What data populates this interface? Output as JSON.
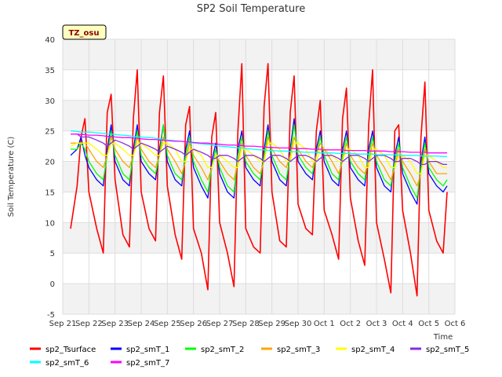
{
  "chart_data": {
    "type": "line",
    "title": "SP2 Soil Temperature",
    "ylabel": "Soil Temperature (C)",
    "xlabel": "Time",
    "ylim": [
      -5,
      40
    ],
    "yticks": [
      -5,
      0,
      5,
      10,
      15,
      20,
      25,
      30,
      35,
      40
    ],
    "xlim": [
      0,
      15
    ],
    "xtick_labels": [
      "Sep 21",
      "Sep 22",
      "Sep 23",
      "Sep 24",
      "Sep 25",
      "Sep 26",
      "Sep 27",
      "Sep 28",
      "Sep 29",
      "Sep 30",
      "Oct 1",
      "Oct 2",
      "Oct 3",
      "Oct 4",
      "Oct 5",
      "Oct 6"
    ],
    "badge": "TZ_osu",
    "x_days": [
      0.3,
      0.55,
      0.7,
      0.85,
      1.0,
      1.3,
      1.55,
      1.7,
      1.85,
      2.0,
      2.3,
      2.55,
      2.7,
      2.85,
      3.0,
      3.3,
      3.55,
      3.7,
      3.85,
      4.0,
      4.3,
      4.55,
      4.7,
      4.85,
      5.0,
      5.3,
      5.55,
      5.7,
      5.85,
      6.0,
      6.3,
      6.55,
      6.7,
      6.85,
      7.0,
      7.3,
      7.55,
      7.7,
      7.85,
      8.0,
      8.3,
      8.55,
      8.7,
      8.85,
      9.0,
      9.3,
      9.55,
      9.7,
      9.85,
      10.0,
      10.3,
      10.55,
      10.7,
      10.85,
      11.0,
      11.3,
      11.55,
      11.7,
      11.85,
      12.0,
      12.3,
      12.55,
      12.7,
      12.85,
      13.0,
      13.3,
      13.55,
      13.7,
      13.85,
      14.0,
      14.3,
      14.55,
      14.7
    ],
    "series": [
      {
        "name": "sp2_Tsurface",
        "color": "#ff0000",
        "values": [
          9,
          16,
          24,
          27,
          15,
          9,
          5,
          28,
          31,
          17,
          8,
          6,
          27,
          35,
          15,
          9,
          7,
          28,
          34,
          16,
          8,
          4,
          26,
          29,
          9,
          5,
          -1,
          24,
          28,
          10,
          5,
          -0.5,
          25,
          36,
          9,
          6,
          5,
          29,
          36,
          15,
          7,
          6,
          28,
          34,
          13,
          9,
          8,
          25,
          30,
          12,
          8,
          4,
          27,
          32,
          14,
          7,
          3,
          26,
          35,
          10,
          4,
          -1.5,
          25,
          26,
          12,
          5,
          -2,
          24,
          33,
          12,
          7,
          5,
          15
        ]
      },
      {
        "name": "sp2_smT_1",
        "color": "#0000ff",
        "values": [
          21,
          22,
          24,
          21,
          19,
          17,
          16,
          22,
          26,
          20,
          17,
          16,
          22,
          26,
          20,
          18,
          17,
          22,
          26,
          20,
          17,
          16,
          22,
          25,
          19,
          16,
          14,
          20,
          23,
          18,
          15,
          14,
          22,
          25,
          19,
          17,
          16,
          22,
          26,
          20,
          17,
          16,
          22,
          27,
          20,
          18,
          17,
          22,
          25,
          20,
          17,
          16,
          22,
          25,
          19,
          17,
          16,
          22,
          25,
          19,
          16,
          15,
          21,
          24,
          18,
          15,
          13,
          20,
          24,
          18,
          16,
          15,
          16
        ]
      },
      {
        "name": "sp2_smT_2",
        "color": "#00ff00",
        "values": [
          22,
          22,
          23,
          22,
          20,
          18,
          17,
          21,
          25,
          21,
          18,
          17,
          21,
          25,
          21,
          19,
          18,
          21,
          26,
          21,
          18,
          17,
          21,
          24,
          20,
          17,
          15,
          19,
          22,
          19,
          16,
          15,
          21,
          24,
          20,
          18,
          17,
          21,
          25,
          21,
          18,
          17,
          21,
          26,
          21,
          19,
          18,
          21,
          24,
          21,
          18,
          17,
          21,
          24,
          20,
          18,
          17,
          21,
          24,
          20,
          17,
          16,
          20,
          23,
          19,
          16,
          14,
          19,
          23,
          19,
          17,
          16,
          17
        ]
      },
      {
        "name": "sp2_smT_3",
        "color": "#ffa500",
        "values": [
          23,
          23,
          23,
          23,
          22,
          20,
          19,
          21,
          24,
          22,
          20,
          19,
          21,
          24,
          22,
          20,
          19,
          21,
          24,
          22,
          20,
          18,
          20,
          23,
          21,
          19,
          17,
          19,
          21,
          20,
          18,
          17,
          20,
          23,
          21,
          19,
          18,
          20,
          24,
          22,
          20,
          19,
          21,
          24,
          22,
          20,
          19,
          21,
          23,
          22,
          20,
          18,
          20,
          23,
          21,
          19,
          18,
          20,
          23,
          21,
          19,
          17,
          19,
          22,
          20,
          18,
          16,
          18,
          22,
          20,
          18,
          18,
          18
        ]
      },
      {
        "name": "sp2_smT_4",
        "color": "#ffff00",
        "values": [
          22.5,
          23,
          23,
          23,
          23,
          22,
          21,
          21,
          23,
          23,
          22,
          21,
          21,
          23,
          23,
          22,
          21,
          21,
          23,
          23,
          22,
          20,
          20,
          22,
          22,
          21,
          19,
          19,
          21,
          21,
          20,
          19,
          19,
          22,
          22,
          21,
          20,
          20,
          23,
          23,
          22,
          20,
          20,
          23,
          23,
          22,
          20,
          20,
          22,
          22,
          21,
          20,
          20,
          22,
          22,
          21,
          19,
          19,
          22,
          22,
          21,
          19,
          19,
          21,
          21,
          20,
          18,
          18,
          21,
          21,
          20,
          19,
          19
        ]
      },
      {
        "name": "sp2_smT_5",
        "color": "#8a2be2",
        "values": [
          24.5,
          24.5,
          24,
          24,
          24,
          23.5,
          23,
          22.5,
          23,
          23.5,
          23,
          22.5,
          22,
          22.5,
          23,
          22.5,
          22,
          21.5,
          22,
          22.5,
          22,
          21.5,
          21,
          21.5,
          22,
          21.5,
          21,
          20.5,
          20.5,
          21,
          21,
          20.5,
          20,
          20.5,
          21,
          21,
          20.5,
          20,
          20.5,
          21,
          21,
          20.5,
          20,
          20.5,
          21,
          21,
          20.5,
          20,
          20.5,
          21,
          21,
          20.5,
          20,
          20.5,
          21,
          21,
          20.5,
          20,
          20.5,
          21,
          21,
          20.5,
          20,
          20,
          20.5,
          20.5,
          20,
          19.5,
          19.5,
          20,
          20,
          19.5,
          19.5
        ]
      },
      {
        "name": "sp2_smT_6",
        "color": "#00ffff",
        "values": [
          25,
          24.9,
          24.8,
          24.8,
          24.8,
          24.7,
          24.6,
          24.5,
          24.5,
          24.4,
          24.3,
          24.2,
          24.1,
          24.0,
          24.0,
          23.9,
          23.8,
          23.7,
          23.6,
          23.5,
          23.4,
          23.3,
          23.2,
          23.1,
          23.0,
          22.9,
          22.8,
          22.7,
          22.6,
          22.5,
          22.4,
          22.3,
          22.2,
          22.2,
          22.1,
          22.0,
          21.9,
          21.9,
          21.8,
          21.8,
          21.7,
          21.7,
          21.6,
          21.6,
          21.6,
          21.5,
          21.5,
          21.5,
          21.4,
          21.4,
          21.4,
          21.3,
          21.3,
          21.3,
          21.3,
          21.2,
          21.2,
          21.2,
          21.2,
          21.1,
          21.1,
          21.1,
          21.1,
          21.0,
          21.0,
          21.0,
          21.0,
          20.9,
          20.9,
          20.9,
          20.9,
          20.8,
          20.8
        ]
      },
      {
        "name": "sp2_smT_7",
        "color": "#ff00ff",
        "values": [
          24.5,
          24.5,
          24.4,
          24.4,
          24.3,
          24.3,
          24.2,
          24.1,
          24.1,
          24.0,
          23.9,
          23.9,
          23.8,
          23.8,
          23.7,
          23.6,
          23.6,
          23.5,
          23.5,
          23.4,
          23.3,
          23.3,
          23.2,
          23.2,
          23.1,
          23.0,
          23.0,
          22.9,
          22.9,
          22.8,
          22.7,
          22.7,
          22.6,
          22.6,
          22.5,
          22.5,
          22.4,
          22.4,
          22.3,
          22.3,
          22.2,
          22.2,
          22.2,
          22.1,
          22.1,
          22.1,
          22.0,
          22.0,
          22.0,
          21.9,
          21.9,
          21.9,
          21.9,
          21.8,
          21.8,
          21.8,
          21.8,
          21.7,
          21.7,
          21.7,
          21.7,
          21.6,
          21.6,
          21.6,
          21.6,
          21.5,
          21.5,
          21.5,
          21.5,
          21.4,
          21.4,
          21.4,
          21.4
        ]
      }
    ]
  }
}
